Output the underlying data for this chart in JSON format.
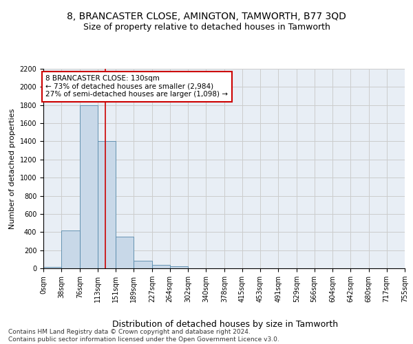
{
  "title": "8, BRANCASTER CLOSE, AMINGTON, TAMWORTH, B77 3QD",
  "subtitle": "Size of property relative to detached houses in Tamworth",
  "xlabel": "Distribution of detached houses by size in Tamworth",
  "ylabel": "Number of detached properties",
  "bin_edges": [
    0,
    38,
    76,
    113,
    151,
    189,
    227,
    264,
    302,
    340,
    378,
    415,
    453,
    491,
    529,
    566,
    604,
    642,
    680,
    717,
    755
  ],
  "bar_heights": [
    15,
    420,
    1800,
    1400,
    350,
    80,
    35,
    20,
    0,
    0,
    0,
    0,
    0,
    0,
    0,
    0,
    0,
    0,
    0,
    0
  ],
  "bar_color": "#c8d8e8",
  "bar_edge_color": "#5588aa",
  "property_line_x": 130,
  "property_line_color": "#cc0000",
  "annotation_text": "8 BRANCASTER CLOSE: 130sqm\n← 73% of detached houses are smaller (2,984)\n27% of semi-detached houses are larger (1,098) →",
  "annotation_box_color": "#ffffff",
  "annotation_box_edge_color": "#cc0000",
  "ylim": [
    0,
    2200
  ],
  "yticks": [
    0,
    200,
    400,
    600,
    800,
    1000,
    1200,
    1400,
    1600,
    1800,
    2000,
    2200
  ],
  "grid_color": "#cccccc",
  "bg_color": "#e8eef5",
  "footer_text": "Contains HM Land Registry data © Crown copyright and database right 2024.\nContains public sector information licensed under the Open Government Licence v3.0.",
  "title_fontsize": 10,
  "subtitle_fontsize": 9,
  "xlabel_fontsize": 9,
  "ylabel_fontsize": 8,
  "tick_fontsize": 7,
  "annotation_fontsize": 7.5,
  "footer_fontsize": 6.5
}
